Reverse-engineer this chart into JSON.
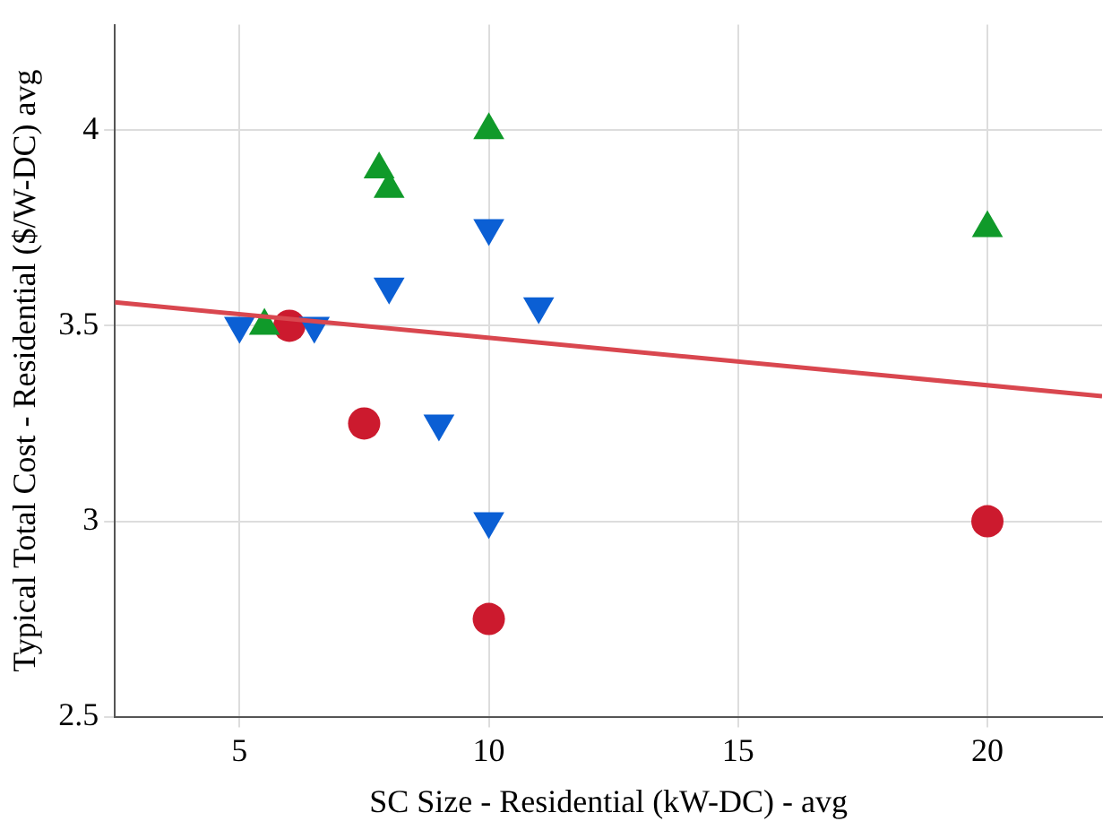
{
  "chart_data": {
    "type": "scatter",
    "xlabel": "SC Size - Residential (kW-DC) - avg",
    "ylabel": "Typical Total Cost - Residential ($/W-DC) avg",
    "xlim": [
      2.5,
      22.3
    ],
    "xticks": [
      5,
      10,
      15,
      20
    ],
    "ylim": [
      2.5,
      4.27
    ],
    "yticks": [
      2.5,
      3,
      3.5,
      4
    ],
    "grid": true,
    "legend": false,
    "series": [
      {
        "type": "scatter",
        "marker": "triangle",
        "color": "#109a2a",
        "x": [
          5.5,
          7.8,
          8,
          10,
          20
        ],
        "values": [
          3.5,
          3.9,
          3.85,
          4.0,
          3.75
        ]
      },
      {
        "type": "scatter",
        "marker": "triangle-down",
        "color": "#0b5fd4",
        "x": [
          5,
          6.5,
          8,
          9,
          10,
          11,
          10
        ],
        "values": [
          3.5,
          3.5,
          3.6,
          3.25,
          3.75,
          3.55,
          3.0
        ]
      },
      {
        "type": "scatter",
        "marker": "circle",
        "color": "#cc1a2e",
        "x": [
          6,
          7.5,
          10,
          20
        ],
        "values": [
          3.5,
          3.25,
          2.75,
          3.0
        ]
      },
      {
        "type": "line",
        "marker": "none",
        "color": "#d9474f",
        "x": [
          2.5,
          22.3
        ],
        "values": [
          3.56,
          3.32
        ]
      }
    ]
  }
}
